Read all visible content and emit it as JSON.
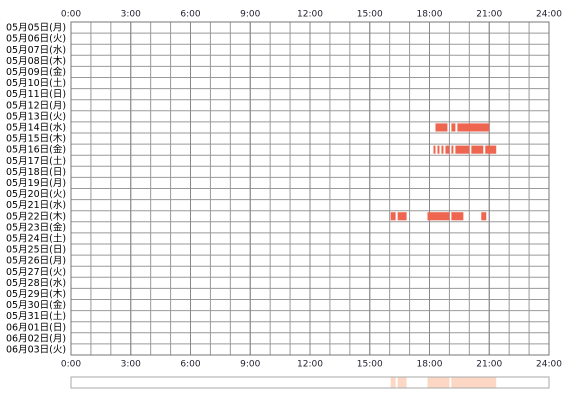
{
  "chart_data": {
    "type": "timeline",
    "xlim": [
      0,
      24
    ],
    "xticks": [
      {
        "value": 0,
        "label": "0:00"
      },
      {
        "value": 3,
        "label": "3:00"
      },
      {
        "value": 6,
        "label": "6:00"
      },
      {
        "value": 9,
        "label": "9:00"
      },
      {
        "value": 12,
        "label": "12:00"
      },
      {
        "value": 15,
        "label": "15:00"
      },
      {
        "value": 18,
        "label": "18:00"
      },
      {
        "value": 21,
        "label": "21:00"
      },
      {
        "value": 24,
        "label": "24:00"
      }
    ],
    "color": "#ee6650",
    "summary_color": "#fcd8c4",
    "rows": [
      {
        "label": "05月05日(月)",
        "segments": []
      },
      {
        "label": "05月06日(火)",
        "segments": []
      },
      {
        "label": "05月07日(水)",
        "segments": []
      },
      {
        "label": "05月08日(木)",
        "segments": []
      },
      {
        "label": "05月09日(金)",
        "segments": []
      },
      {
        "label": "05月10日(土)",
        "segments": []
      },
      {
        "label": "05月11日(日)",
        "segments": []
      },
      {
        "label": "05月12日(月)",
        "segments": []
      },
      {
        "label": "05月13日(火)",
        "segments": []
      },
      {
        "label": "05月14日(水)",
        "segments": [
          [
            18.3,
            18.9
          ],
          [
            19.1,
            19.3
          ],
          [
            19.4,
            21.0
          ]
        ]
      },
      {
        "label": "05月15日(木)",
        "segments": []
      },
      {
        "label": "05月16日(金)",
        "segments": [
          [
            18.2,
            18.3
          ],
          [
            18.4,
            18.5
          ],
          [
            18.6,
            18.7
          ],
          [
            18.8,
            19.0
          ],
          [
            19.1,
            19.2
          ],
          [
            19.3,
            20.0
          ],
          [
            20.1,
            20.7
          ],
          [
            20.8,
            21.35
          ]
        ]
      },
      {
        "label": "05月17日(土)",
        "segments": []
      },
      {
        "label": "05月18日(日)",
        "segments": []
      },
      {
        "label": "05月19日(月)",
        "segments": []
      },
      {
        "label": "05月20日(火)",
        "segments": []
      },
      {
        "label": "05月21日(水)",
        "segments": []
      },
      {
        "label": "05月22日(木)",
        "segments": [
          [
            16.05,
            16.3
          ],
          [
            16.4,
            16.85
          ],
          [
            17.9,
            19.0
          ],
          [
            19.1,
            19.7
          ],
          [
            20.6,
            20.85
          ]
        ]
      },
      {
        "label": "05月23日(金)",
        "segments": []
      },
      {
        "label": "05月24日(土)",
        "segments": []
      },
      {
        "label": "05月25日(日)",
        "segments": []
      },
      {
        "label": "05月26日(月)",
        "segments": []
      },
      {
        "label": "05月27日(火)",
        "segments": []
      },
      {
        "label": "05月28日(水)",
        "segments": []
      },
      {
        "label": "05月29日(木)",
        "segments": []
      },
      {
        "label": "05月30日(金)",
        "segments": []
      },
      {
        "label": "05月31日(土)",
        "segments": []
      },
      {
        "label": "06月01日(日)",
        "segments": []
      },
      {
        "label": "06月02日(月)",
        "segments": []
      },
      {
        "label": "06月03日(火)",
        "segments": []
      }
    ]
  }
}
